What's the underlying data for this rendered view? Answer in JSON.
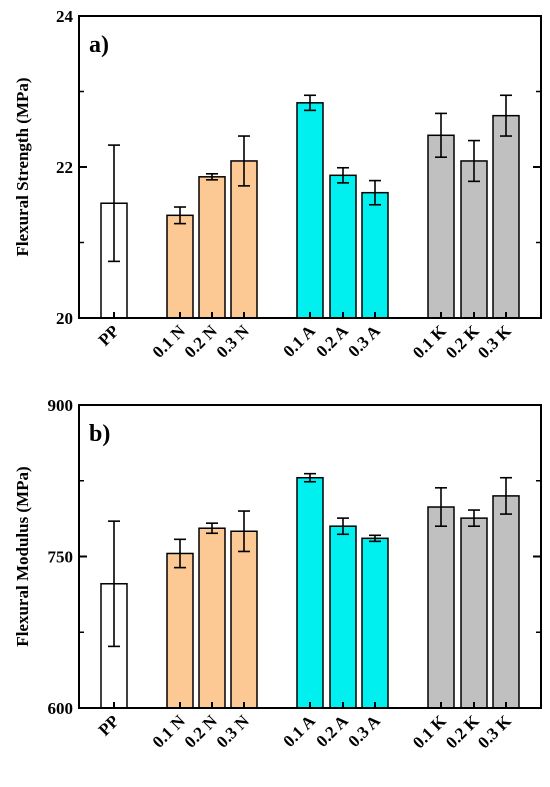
{
  "colors": {
    "PP": "#ffffff",
    "N": "#fcc894",
    "A": "#00f0f0",
    "K": "#c0c0c0"
  },
  "chart_data": [
    {
      "type": "bar",
      "panel_label": "a)",
      "title": "",
      "xlabel": "",
      "ylabel": "Flexural Strength (MPa)",
      "ylim": [
        20,
        24
      ],
      "yticks": [
        20,
        22,
        24
      ],
      "grid": false,
      "categories": [
        "PP",
        "0.1 N",
        "0.2 N",
        "0.3 N",
        "0.1 A",
        "0.2 A",
        "0.3 A",
        "0.1 K",
        "0.2 K",
        "0.3 K"
      ],
      "groups": [
        "PP",
        "N",
        "N",
        "N",
        "A",
        "A",
        "A",
        "K",
        "K",
        "K"
      ],
      "values": [
        21.52,
        21.36,
        21.87,
        22.08,
        22.85,
        21.89,
        21.66,
        22.42,
        22.08,
        22.68
      ],
      "errors": [
        0.77,
        0.11,
        0.04,
        0.33,
        0.1,
        0.1,
        0.16,
        0.29,
        0.27,
        0.27
      ]
    },
    {
      "type": "bar",
      "panel_label": "b)",
      "title": "",
      "xlabel": "",
      "ylabel": "Flexural Modulus (MPa)",
      "ylim": [
        600,
        900
      ],
      "yticks": [
        600,
        750,
        900
      ],
      "grid": false,
      "categories": [
        "PP",
        "0.1 N",
        "0.2 N",
        "0.3 N",
        "0.1 A",
        "0.2 A",
        "0.3 A",
        "0.1 K",
        "0.2 K",
        "0.3 K"
      ],
      "groups": [
        "PP",
        "N",
        "N",
        "N",
        "A",
        "A",
        "A",
        "K",
        "K",
        "K"
      ],
      "values": [
        723,
        753,
        778,
        775,
        828,
        780,
        768,
        799,
        788,
        810
      ],
      "errors": [
        62,
        14,
        5,
        20,
        4,
        8,
        3,
        19,
        8,
        18
      ]
    }
  ]
}
